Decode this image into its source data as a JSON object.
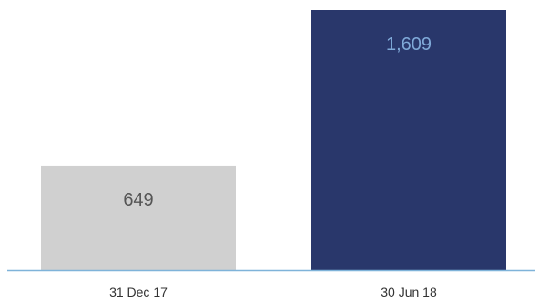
{
  "chart_data": {
    "type": "bar",
    "categories": [
      "31 Dec 17",
      "30 Jun 18"
    ],
    "values": [
      649,
      1609
    ],
    "value_labels": [
      "649",
      "1,609"
    ],
    "ylim": [
      0,
      1609
    ],
    "grid": false,
    "title": "",
    "xlabel": "",
    "ylabel": "",
    "colors": {
      "bars": [
        "#d0d0d0",
        "#29376b"
      ],
      "value_labels": [
        "#555555",
        "#7fa9d8"
      ],
      "baseline": "#7fb3d9"
    }
  }
}
